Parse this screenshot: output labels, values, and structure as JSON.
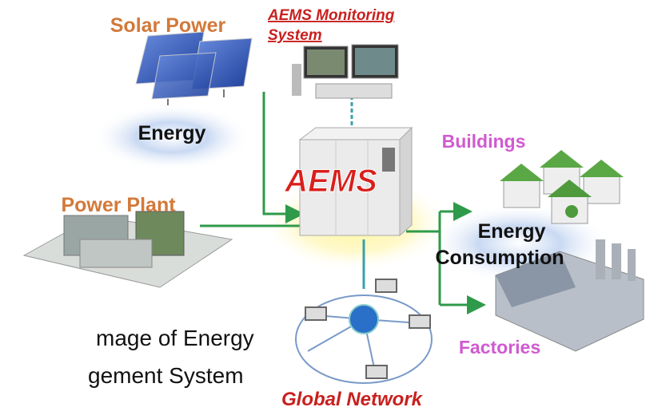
{
  "labels": {
    "solar": "Solar Power",
    "monitoring": [
      "AEMS Monitoring",
      "System"
    ],
    "energy": "Energy",
    "aems": "AEMS",
    "power_plant": "Power Plant",
    "buildings": "Buildings",
    "consumption": [
      "Energy",
      "Consumption"
    ],
    "factories": "Factories",
    "caption": [
      "mage of Energy",
      "gement System"
    ],
    "network": "Global Network"
  }
}
